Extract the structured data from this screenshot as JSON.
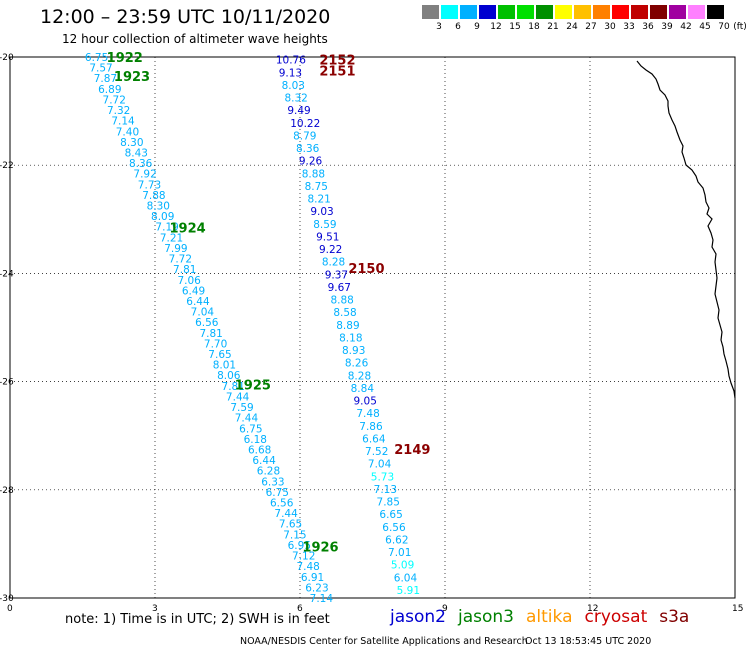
{
  "header": {
    "title": "12:00 – 23:59 UTC 10/11/2020",
    "subtitle": "12 hour collection of altimeter wave heights"
  },
  "legend": {
    "unit": "(ft)",
    "colors": [
      "#808080",
      "#00ffff",
      "#00b0ff",
      "#0000d0",
      "#00c000",
      "#00e000",
      "#009000",
      "#ffff00",
      "#ffc000",
      "#ff8000",
      "#ff0000",
      "#c00000",
      "#800000",
      "#a000a0",
      "#ff80ff",
      "#000000"
    ],
    "levels": [
      "3",
      "6",
      "9",
      "12",
      "15",
      "18",
      "21",
      "24",
      "27",
      "30",
      "33",
      "36",
      "39",
      "42",
      "45",
      "70"
    ]
  },
  "axes": {
    "x_ticks": [
      "0",
      "3",
      "6",
      "9",
      "12",
      "15"
    ],
    "y_ticks": [
      "-20",
      "-22",
      "-24",
      "-26",
      "-28",
      "-30"
    ]
  },
  "tracks": [
    {
      "satellite": "jason3",
      "time_labels": [
        {
          "text": "1922",
          "lat": -20.0,
          "lon": 2.0
        },
        {
          "text": "1923",
          "lat": -20.35,
          "lon": 2.15
        },
        {
          "text": "1924",
          "lat": -23.15,
          "lon": 3.3
        },
        {
          "text": "1925",
          "lat": -26.05,
          "lon": 4.65
        },
        {
          "text": "1926",
          "lat": -29.05,
          "lon": 6.05
        }
      ],
      "start": {
        "lat": -20.0,
        "lon": 1.55
      },
      "end": {
        "lat": -30.0,
        "lon": 6.2
      },
      "values": [
        "6.75",
        "7.57",
        "7.87",
        "6.89",
        "7.72",
        "7.32",
        "7.14",
        "7.40",
        "8.30",
        "8.43",
        "8.36",
        "7.92",
        "7.73",
        "7.88",
        "8.30",
        "8.09",
        "7.19",
        "7.21",
        "7.99",
        "7.72",
        "7.81",
        "7.06",
        "6.49",
        "6.44",
        "7.04",
        "6.56",
        "7.81",
        "7.70",
        "7.65",
        "8.01",
        "8.06",
        "7.81",
        "7.44",
        "7.59",
        "7.44",
        "6.75",
        "6.18",
        "6.68",
        "6.44",
        "6.28",
        "6.33",
        "6.75",
        "6.56",
        "7.44",
        "7.65",
        "7.15",
        "6.95",
        "7.12",
        "7.48",
        "6.91",
        "6.23",
        "7.14"
      ]
    },
    {
      "satellite": "s3a",
      "time_labels": [
        {
          "text": "2152",
          "lat": -20.05,
          "lon": 6.4
        },
        {
          "text": "2151",
          "lat": -20.25,
          "lon": 6.4
        },
        {
          "text": "2150",
          "lat": -23.9,
          "lon": 7.0
        },
        {
          "text": "2149",
          "lat": -27.25,
          "lon": 7.95
        }
      ],
      "start": {
        "lat": -20.05,
        "lon": 5.5
      },
      "end": {
        "lat": -29.85,
        "lon": 8.0
      },
      "values": [
        "10.76",
        "9.13",
        "8.03",
        "8.32",
        "9.49",
        "10.22",
        "8.79",
        "8.36",
        "9.26",
        "8.88",
        "8.75",
        "8.21",
        "9.03",
        "8.59",
        "9.51",
        "9.22",
        "8.28",
        "9.37",
        "9.67",
        "8.88",
        "8.58",
        "8.89",
        "8.18",
        "8.93",
        "8.26",
        "8.28",
        "8.84",
        "9.05",
        "7.48",
        "7.86",
        "6.64",
        "7.52",
        "7.04",
        "5.73",
        "7.13",
        "7.85",
        "6.65",
        "6.56",
        "6.62",
        "7.01",
        "5.09",
        "6.04",
        "5.91"
      ]
    }
  ],
  "footer": {
    "note": "note:  1) Time is in UTC;  2) SWH is in feet",
    "satellites": [
      {
        "name": "jason2",
        "color": "#0000d0"
      },
      {
        "name": "jason3",
        "color": "#008000"
      },
      {
        "name": "altika",
        "color": "#ff9900"
      },
      {
        "name": "cryosat",
        "color": "#cc0000"
      },
      {
        "name": "s3a",
        "color": "#800000"
      }
    ],
    "credit": "NOAA/NESDIS Center for Satellite Applications and Research",
    "timestamp": "Oct 13 18:53:45 UTC 2020"
  }
}
